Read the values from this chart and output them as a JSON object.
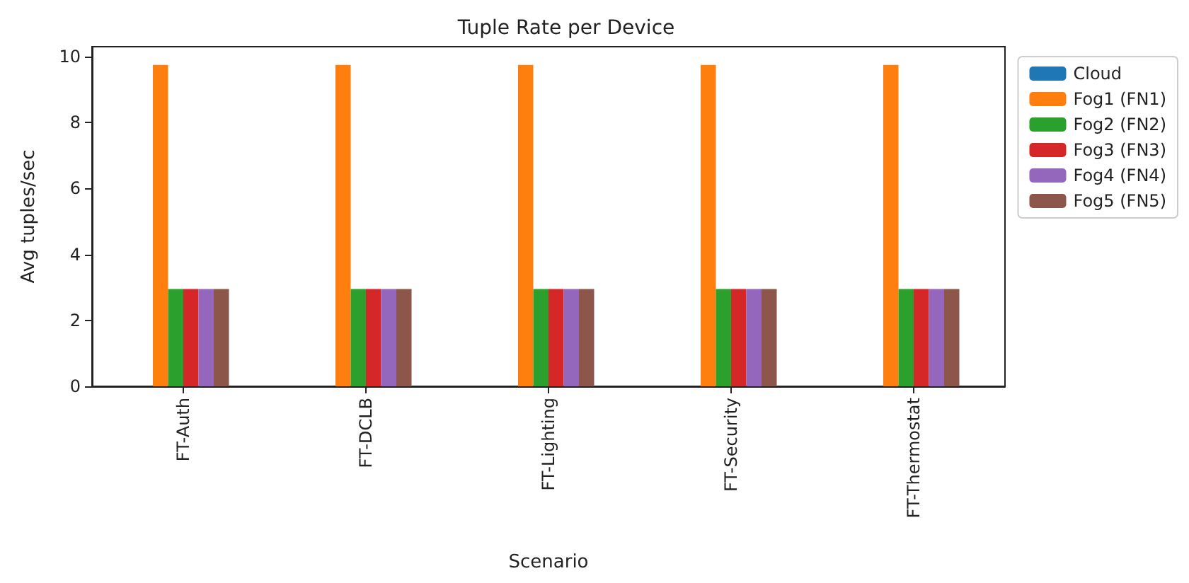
{
  "chart_data": {
    "type": "bar",
    "title": "Tuple Rate per Device",
    "xlabel": "Scenario",
    "ylabel": "Avg tuples/sec",
    "categories": [
      "FT-Auth",
      "FT-DCLB",
      "FT-Lighting",
      "FT-Security",
      "FT-Thermostat"
    ],
    "series": [
      {
        "name": "Cloud",
        "color": "#1f77b4",
        "values": [
          0,
          0,
          0,
          0,
          0
        ]
      },
      {
        "name": "Fog1 (FN1)",
        "color": "#ff7f0e",
        "values": [
          9.75,
          9.75,
          9.75,
          9.75,
          9.75
        ]
      },
      {
        "name": "Fog2 (FN2)",
        "color": "#2ca02c",
        "values": [
          2.95,
          2.95,
          2.95,
          2.95,
          2.95
        ]
      },
      {
        "name": "Fog3 (FN3)",
        "color": "#d62728",
        "values": [
          2.95,
          2.95,
          2.95,
          2.95,
          2.95
        ]
      },
      {
        "name": "Fog4 (FN4)",
        "color": "#9467bd",
        "values": [
          2.95,
          2.95,
          2.95,
          2.95,
          2.95
        ]
      },
      {
        "name": "Fog5 (FN5)",
        "color": "#8c564b",
        "values": [
          2.95,
          2.95,
          2.95,
          2.95,
          2.95
        ]
      }
    ],
    "ylim": [
      0,
      10.3
    ],
    "yticks": [
      0,
      2,
      4,
      6,
      8,
      10
    ],
    "grid": false,
    "legend": "top right"
  }
}
